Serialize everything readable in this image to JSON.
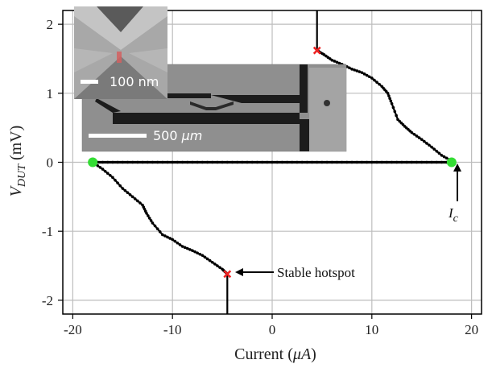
{
  "chart_data": {
    "type": "line",
    "title": "",
    "xlabel_text": "Current (",
    "xlabel_unit": "μA",
    "xlabel_close": ")",
    "ylabel_var": "V",
    "ylabel_sub": "DUT",
    "ylabel_unit": " (mV)",
    "xlim": [
      -21,
      21
    ],
    "ylim": [
      -2.2,
      2.2
    ],
    "x_ticks": [
      -20,
      -10,
      0,
      10,
      20
    ],
    "x_tick_labels": [
      "-20",
      "-10",
      "0",
      "10",
      "20"
    ],
    "y_ticks": [
      -2,
      -1,
      0,
      1,
      2
    ],
    "y_tick_labels": [
      "-2",
      "-1",
      "0",
      "1",
      "2"
    ],
    "grid": true,
    "series": [
      {
        "line_color": "#000000",
        "upper_branch": [
          [
            4.5,
            2.2
          ],
          [
            4.5,
            2.0
          ],
          [
            4.5,
            1.8
          ],
          [
            4.5,
            1.62
          ],
          [
            5.2,
            1.56
          ],
          [
            6.0,
            1.48
          ],
          [
            7.0,
            1.42
          ],
          [
            8.0,
            1.35
          ],
          [
            9.0,
            1.3
          ],
          [
            10.0,
            1.22
          ],
          [
            11.0,
            1.1
          ],
          [
            11.6,
            1.0
          ],
          [
            12.0,
            0.85
          ],
          [
            12.6,
            0.62
          ],
          [
            13.3,
            0.52
          ],
          [
            14.0,
            0.43
          ],
          [
            15.0,
            0.33
          ],
          [
            16.0,
            0.22
          ],
          [
            17.0,
            0.1
          ],
          [
            18.0,
            0.02
          ]
        ],
        "superconducting_branch": [
          [
            -18.0,
            0.0
          ],
          [
            18.0,
            0.0
          ]
        ],
        "lower_branch": [
          [
            -18.0,
            0.0
          ],
          [
            -17.0,
            -0.1
          ],
          [
            -16.0,
            -0.22
          ],
          [
            -15.0,
            -0.38
          ],
          [
            -14.0,
            -0.5
          ],
          [
            -13.0,
            -0.62
          ],
          [
            -12.6,
            -0.74
          ],
          [
            -12.0,
            -0.88
          ],
          [
            -11.0,
            -1.05
          ],
          [
            -10.0,
            -1.12
          ],
          [
            -9.0,
            -1.22
          ],
          [
            -8.0,
            -1.28
          ],
          [
            -7.0,
            -1.35
          ],
          [
            -6.0,
            -1.45
          ],
          [
            -5.0,
            -1.55
          ],
          [
            -4.5,
            -1.62
          ],
          [
            -4.5,
            -1.8
          ],
          [
            -4.5,
            -2.0
          ],
          [
            -4.5,
            -2.2
          ]
        ]
      }
    ],
    "highlight_points": [
      {
        "x": 18.0,
        "y": 0.0,
        "color": "#33dd33"
      },
      {
        "x": -18.0,
        "y": 0.0,
        "color": "#33dd33"
      },
      {
        "x": 4.5,
        "y": 1.62,
        "color": "#ee2222"
      },
      {
        "x": -4.5,
        "y": -1.62,
        "color": "#ee2222"
      }
    ],
    "annotations": {
      "ic_symbol": "I",
      "ic_sub": "c",
      "stable_hotspot": "Stable hotspot"
    }
  },
  "insets": {
    "large_scale_value": "500 ",
    "large_scale_unit": "μm",
    "small_scale_label": "100 nm"
  }
}
